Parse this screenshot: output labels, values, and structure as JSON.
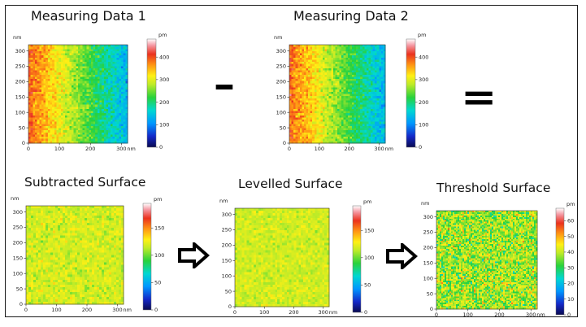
{
  "operators": {
    "minus": "-",
    "equals": "="
  },
  "arrows": [
    "arrow-right",
    "arrow-right"
  ],
  "chart_data": [
    {
      "id": "p1",
      "type": "heatmap",
      "title": "Measuring Data 1",
      "x_unit": "nm",
      "y_unit": "nm",
      "colorbar_unit": "pm",
      "x_ticks": [
        0,
        100,
        200,
        300
      ],
      "y_ticks": [
        0,
        50,
        100,
        150,
        200,
        250,
        300
      ],
      "x_range": [
        0,
        320
      ],
      "y_range": [
        0,
        320
      ],
      "colorbar_ticks": [
        0,
        100,
        200,
        300,
        400
      ],
      "colorbar_range": [
        0,
        480
      ],
      "surface": {
        "kind": "gradient",
        "left": 390,
        "right": 130,
        "noise": 45
      }
    },
    {
      "id": "p2",
      "type": "heatmap",
      "title": "Measuring Data 2",
      "x_unit": "nm",
      "y_unit": "nm",
      "colorbar_unit": "pm",
      "x_ticks": [
        0,
        100,
        200,
        300
      ],
      "y_ticks": [
        0,
        50,
        100,
        150,
        200,
        250,
        300
      ],
      "x_range": [
        0,
        320
      ],
      "y_range": [
        0,
        320
      ],
      "colorbar_ticks": [
        0,
        100,
        200,
        300,
        400
      ],
      "colorbar_range": [
        0,
        480
      ],
      "surface": {
        "kind": "gradient",
        "left": 390,
        "right": 130,
        "noise": 45
      }
    },
    {
      "id": "p3",
      "type": "heatmap",
      "title": "Subtracted Surface",
      "x_unit": "nm",
      "y_unit": "nm",
      "colorbar_unit": "pm",
      "x_ticks": [
        0,
        100,
        200,
        300
      ],
      "y_ticks": [
        0,
        50,
        100,
        150,
        200,
        250,
        300
      ],
      "x_range": [
        0,
        320
      ],
      "y_range": [
        0,
        320
      ],
      "colorbar_ticks": [
        0,
        50,
        100,
        150
      ],
      "colorbar_range": [
        0,
        195
      ],
      "surface": {
        "kind": "flat",
        "mean": 118,
        "noise": 12
      }
    },
    {
      "id": "p4",
      "type": "heatmap",
      "title": "Levelled Surface",
      "x_unit": "nm",
      "y_unit": "nm",
      "colorbar_unit": "pm",
      "x_ticks": [
        0,
        100,
        200,
        300
      ],
      "y_ticks": [
        0,
        50,
        100,
        150,
        200,
        250,
        300
      ],
      "x_range": [
        0,
        320
      ],
      "y_range": [
        0,
        320
      ],
      "colorbar_ticks": [
        0,
        50,
        100,
        150
      ],
      "colorbar_range": [
        0,
        195
      ],
      "surface": {
        "kind": "flat",
        "mean": 118,
        "noise": 10
      }
    },
    {
      "id": "p5",
      "type": "heatmap",
      "title": "Threshold Surface",
      "x_unit": "nm",
      "y_unit": "nm",
      "colorbar_unit": "pm",
      "x_ticks": [
        0,
        100,
        200,
        300
      ],
      "y_ticks": [
        0,
        50,
        100,
        150,
        200,
        250,
        300
      ],
      "x_range": [
        0,
        320
      ],
      "y_range": [
        0,
        320
      ],
      "colorbar_ticks": [
        0,
        10,
        20,
        30,
        40,
        50,
        60
      ],
      "colorbar_range": [
        0,
        68
      ],
      "surface": {
        "kind": "flat",
        "mean": 38,
        "noise": 11
      }
    }
  ]
}
